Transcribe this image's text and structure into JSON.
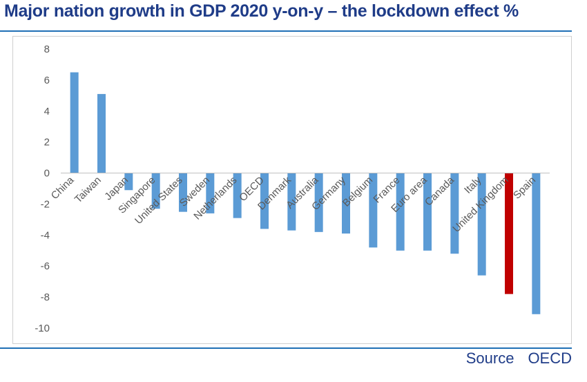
{
  "chart_data": {
    "type": "bar",
    "title": "Major nation growth in GDP  2020 y-on-y – the lockdown effect %",
    "categories": [
      "China",
      "Taiwan",
      "Japan",
      "Singapore",
      "United States",
      "Sweden",
      "Netherlands",
      "OECD",
      "Denmark",
      "Australia",
      "Germany",
      "Belgium",
      "France",
      "Euro area",
      "Canada",
      "Italy",
      "United Kingdom",
      "Spain"
    ],
    "values": [
      6.5,
      5.1,
      -1.1,
      -2.3,
      -2.5,
      -2.6,
      -2.9,
      -3.6,
      -3.7,
      -3.8,
      -3.9,
      -4.8,
      -5.0,
      -5.0,
      -5.2,
      -6.6,
      -7.8,
      -9.1
    ],
    "highlight": "United Kingdom",
    "xlabel": "",
    "ylabel": "",
    "ylim": [
      -10,
      8
    ],
    "yticks": [
      8,
      6,
      4,
      2,
      0,
      -2,
      -4,
      -6,
      -8,
      -10
    ],
    "grid": false,
    "legend": "none"
  },
  "colors": {
    "bar": "#5b9bd5",
    "highlight": "#c00000",
    "title": "#1f3c88",
    "rule": "#1f6fb5",
    "axis": "#bfbfbf",
    "tick_text": "#595959"
  },
  "source": {
    "label": "Source",
    "name": "OECD"
  }
}
